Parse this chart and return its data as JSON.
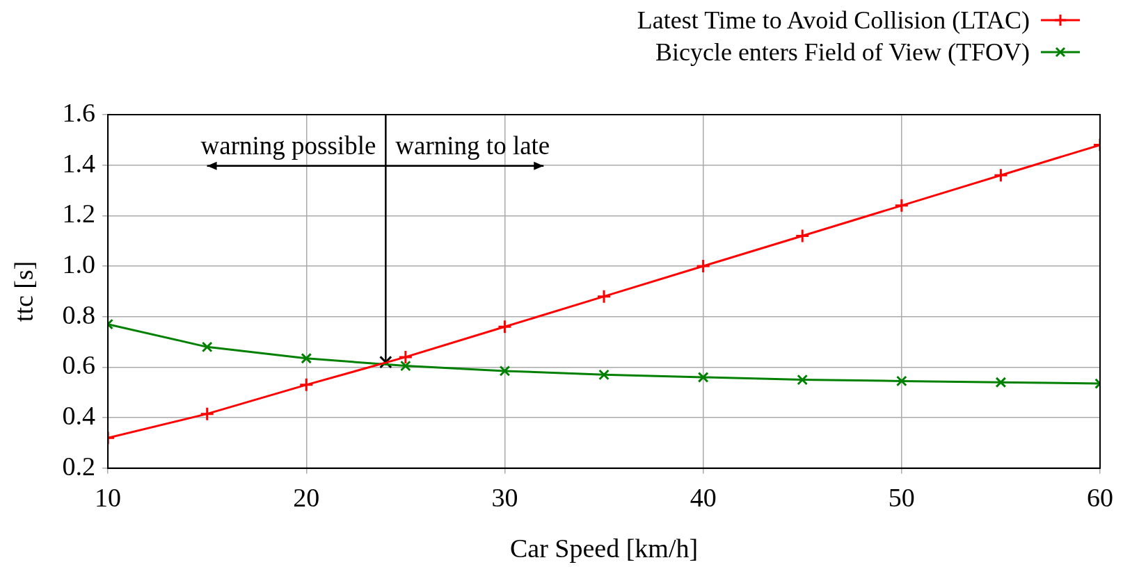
{
  "chart_data": {
    "type": "line",
    "xlabel": "Car Speed [km/h]",
    "ylabel": "ttc [s]",
    "x": [
      10,
      15,
      20,
      25,
      30,
      35,
      40,
      45,
      50,
      55,
      60
    ],
    "series": [
      {
        "name": "Latest Time to Avoid Collision (LTAC)",
        "color": "#ff0000",
        "marker": "cross",
        "values": [
          0.32,
          0.415,
          0.53,
          0.64,
          0.76,
          0.88,
          1.0,
          1.12,
          1.24,
          1.36,
          1.48
        ]
      },
      {
        "name": "Bicycle enters Field of View (TFOV)",
        "color": "#008000",
        "marker": "x",
        "values": [
          0.77,
          0.68,
          0.635,
          0.605,
          0.585,
          0.57,
          0.56,
          0.55,
          0.545,
          0.54,
          0.535
        ]
      },
      {
        "type": "scatter",
        "color": "#000000",
        "marker": "x",
        "x": [
          24
        ],
        "values": [
          0.62
        ]
      }
    ],
    "annotations": [
      "warning possible",
      "warning to late"
    ],
    "ref_lines": [
      {
        "axis": "x",
        "value": 24,
        "color": "#000000"
      }
    ],
    "xlim": [
      10,
      60
    ],
    "xticks": [
      10,
      20,
      30,
      40,
      50,
      60
    ],
    "ylim": [
      0.2,
      1.6
    ],
    "yticks": [
      {
        "value": 0.2,
        "label": "0.2"
      },
      {
        "value": 0.4,
        "label": "0.4"
      },
      {
        "value": 0.6,
        "label": "0.6"
      },
      {
        "value": 0.8,
        "label": "0.8"
      },
      {
        "value": 1.0,
        "label": "1.0"
      },
      {
        "value": 1.2,
        "label": "1.2"
      },
      {
        "value": 1.4,
        "label": "1.4"
      },
      {
        "value": 1.6,
        "label": "1.6"
      }
    ],
    "grid": true,
    "legend": "top right",
    "line_style": "solid"
  }
}
